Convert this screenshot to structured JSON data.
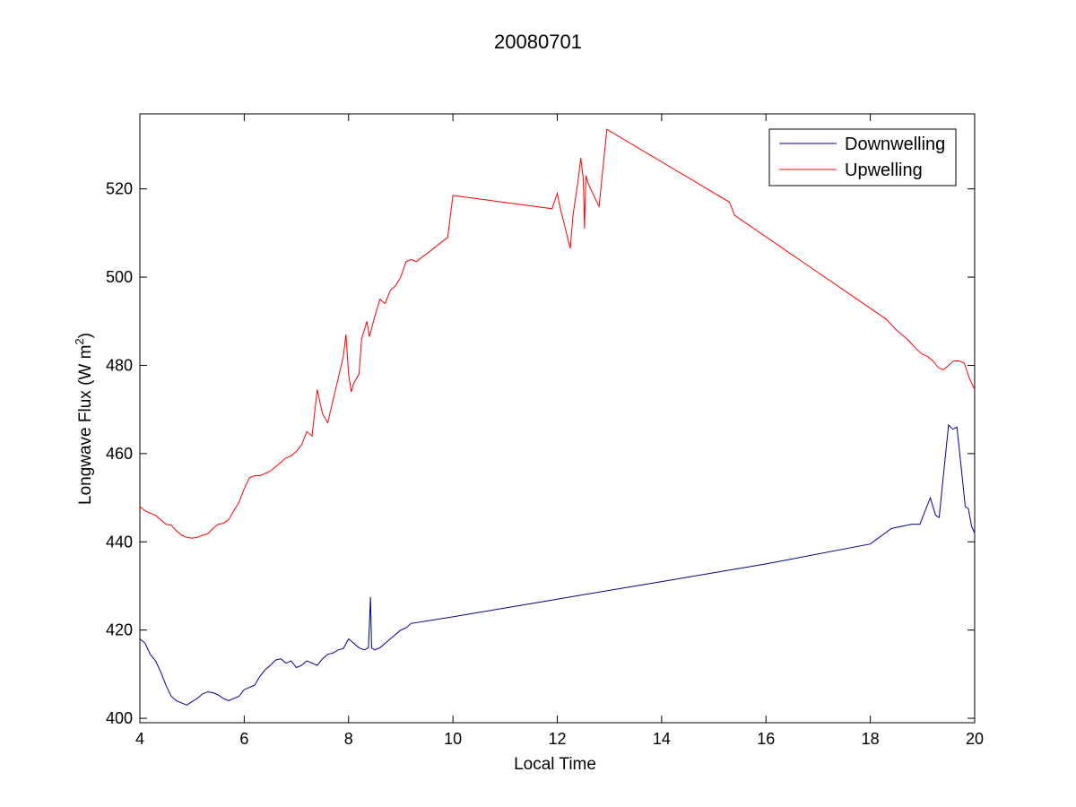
{
  "chart_data": {
    "type": "line",
    "title": "20080701",
    "xlabel": "Local Time",
    "ylabel_main": "Longwave Flux (W m",
    "ylabel_sup": "2",
    "ylabel_close": ")",
    "xlim": [
      4,
      20
    ],
    "ylim": [
      399,
      537
    ],
    "xticks": [
      "4",
      "6",
      "8",
      "10",
      "12",
      "14",
      "16",
      "18",
      "20"
    ],
    "yticks": [
      "400",
      "420",
      "440",
      "460",
      "480",
      "500",
      "520"
    ],
    "grid": false,
    "legend_placement": "top-right",
    "series": [
      {
        "name": "Downwelling",
        "color": "#00008b",
        "points": [
          [
            4.0,
            418.0
          ],
          [
            4.1,
            417.0
          ],
          [
            4.2,
            414.5
          ],
          [
            4.3,
            413.0
          ],
          [
            4.4,
            410.5
          ],
          [
            4.5,
            407.5
          ],
          [
            4.6,
            405.0
          ],
          [
            4.7,
            404.0
          ],
          [
            4.8,
            403.5
          ],
          [
            4.9,
            403.0
          ],
          [
            5.0,
            403.8
          ],
          [
            5.1,
            404.5
          ],
          [
            5.2,
            405.5
          ],
          [
            5.3,
            406.0
          ],
          [
            5.4,
            405.8
          ],
          [
            5.5,
            405.3
          ],
          [
            5.6,
            404.5
          ],
          [
            5.7,
            404.0
          ],
          [
            5.8,
            404.5
          ],
          [
            5.9,
            405.0
          ],
          [
            6.0,
            406.5
          ],
          [
            6.1,
            407.0
          ],
          [
            6.2,
            407.5
          ],
          [
            6.3,
            409.5
          ],
          [
            6.4,
            411.0
          ],
          [
            6.5,
            412.0
          ],
          [
            6.6,
            413.2
          ],
          [
            6.7,
            413.5
          ],
          [
            6.8,
            412.5
          ],
          [
            6.9,
            413.0
          ],
          [
            7.0,
            411.5
          ],
          [
            7.1,
            412.0
          ],
          [
            7.2,
            413.0
          ],
          [
            7.3,
            412.5
          ],
          [
            7.4,
            412.0
          ],
          [
            7.5,
            413.5
          ],
          [
            7.6,
            414.5
          ],
          [
            7.7,
            414.8
          ],
          [
            7.8,
            415.5
          ],
          [
            7.9,
            415.8
          ],
          [
            8.0,
            418.0
          ],
          [
            8.1,
            417.0
          ],
          [
            8.2,
            416.0
          ],
          [
            8.3,
            415.5
          ],
          [
            8.38,
            416.0
          ],
          [
            8.42,
            427.5
          ],
          [
            8.44,
            416.0
          ],
          [
            8.5,
            415.5
          ],
          [
            8.6,
            416.0
          ],
          [
            8.7,
            417.0
          ],
          [
            8.8,
            418.0
          ],
          [
            8.9,
            419.0
          ],
          [
            9.0,
            420.0
          ],
          [
            9.1,
            420.5
          ],
          [
            9.2,
            421.5
          ],
          [
            10.0,
            423.0
          ],
          [
            12.0,
            427.0
          ],
          [
            14.0,
            431.0
          ],
          [
            16.0,
            435.0
          ],
          [
            18.0,
            439.5
          ],
          [
            18.4,
            443.0
          ],
          [
            18.6,
            443.5
          ],
          [
            18.8,
            444.0
          ],
          [
            18.95,
            444.0
          ],
          [
            19.05,
            447.0
          ],
          [
            19.15,
            450.0
          ],
          [
            19.25,
            446.0
          ],
          [
            19.32,
            445.5
          ],
          [
            19.4,
            455.0
          ],
          [
            19.5,
            466.5
          ],
          [
            19.58,
            465.5
          ],
          [
            19.66,
            466.0
          ],
          [
            19.74,
            457.0
          ],
          [
            19.82,
            448.0
          ],
          [
            19.88,
            447.5
          ],
          [
            19.94,
            443.5
          ],
          [
            20.0,
            442.0
          ]
        ]
      },
      {
        "name": "Upwelling",
        "color": "#ff0000",
        "points": [
          [
            4.0,
            448.0
          ],
          [
            4.1,
            447.0
          ],
          [
            4.2,
            446.5
          ],
          [
            4.3,
            446.0
          ],
          [
            4.4,
            445.0
          ],
          [
            4.5,
            444.0
          ],
          [
            4.6,
            443.8
          ],
          [
            4.7,
            442.5
          ],
          [
            4.8,
            441.5
          ],
          [
            4.9,
            441.0
          ],
          [
            5.0,
            440.8
          ],
          [
            5.1,
            441.0
          ],
          [
            5.2,
            441.5
          ],
          [
            5.3,
            441.8
          ],
          [
            5.4,
            443.0
          ],
          [
            5.5,
            444.0
          ],
          [
            5.6,
            444.2
          ],
          [
            5.7,
            445.0
          ],
          [
            5.8,
            447.0
          ],
          [
            5.9,
            449.0
          ],
          [
            6.0,
            452.0
          ],
          [
            6.1,
            454.5
          ],
          [
            6.2,
            455.0
          ],
          [
            6.3,
            455.0
          ],
          [
            6.4,
            455.5
          ],
          [
            6.5,
            456.0
          ],
          [
            6.6,
            457.0
          ],
          [
            6.7,
            458.0
          ],
          [
            6.8,
            459.0
          ],
          [
            6.9,
            459.5
          ],
          [
            7.0,
            460.5
          ],
          [
            7.1,
            462.0
          ],
          [
            7.2,
            465.0
          ],
          [
            7.3,
            464.0
          ],
          [
            7.4,
            474.5
          ],
          [
            7.5,
            469.0
          ],
          [
            7.6,
            467.0
          ],
          [
            7.7,
            472.0
          ],
          [
            7.8,
            477.0
          ],
          [
            7.9,
            482.0
          ],
          [
            7.95,
            487.0
          ],
          [
            8.0,
            478.0
          ],
          [
            8.05,
            474.0
          ],
          [
            8.1,
            476.0
          ],
          [
            8.2,
            478.0
          ],
          [
            8.25,
            486.0
          ],
          [
            8.3,
            488.0
          ],
          [
            8.35,
            490.0
          ],
          [
            8.4,
            486.5
          ],
          [
            8.5,
            491.0
          ],
          [
            8.6,
            495.0
          ],
          [
            8.7,
            494.0
          ],
          [
            8.8,
            497.0
          ],
          [
            8.9,
            498.0
          ],
          [
            9.0,
            500.0
          ],
          [
            9.1,
            503.5
          ],
          [
            9.2,
            504.0
          ],
          [
            9.3,
            503.5
          ],
          [
            9.9,
            509.0
          ],
          [
            10.0,
            518.5
          ],
          [
            11.9,
            515.5
          ],
          [
            12.0,
            519.0
          ],
          [
            12.05,
            516.0
          ],
          [
            12.25,
            506.5
          ],
          [
            12.3,
            514.0
          ],
          [
            12.35,
            518.0
          ],
          [
            12.4,
            522.0
          ],
          [
            12.45,
            527.0
          ],
          [
            12.5,
            522.0
          ],
          [
            12.52,
            511.0
          ],
          [
            12.55,
            523.0
          ],
          [
            12.6,
            521.0
          ],
          [
            12.8,
            516.0
          ],
          [
            12.95,
            533.5
          ],
          [
            15.3,
            517.0
          ],
          [
            15.4,
            514.0
          ],
          [
            18.3,
            490.5
          ],
          [
            18.5,
            488.0
          ],
          [
            18.7,
            486.0
          ],
          [
            18.9,
            483.5
          ],
          [
            19.0,
            482.5
          ],
          [
            19.1,
            482.0
          ],
          [
            19.2,
            481.0
          ],
          [
            19.3,
            479.5
          ],
          [
            19.4,
            479.0
          ],
          [
            19.5,
            480.0
          ],
          [
            19.6,
            481.0
          ],
          [
            19.7,
            481.0
          ],
          [
            19.8,
            480.5
          ],
          [
            19.9,
            477.0
          ],
          [
            20.0,
            474.5
          ]
        ]
      }
    ]
  }
}
